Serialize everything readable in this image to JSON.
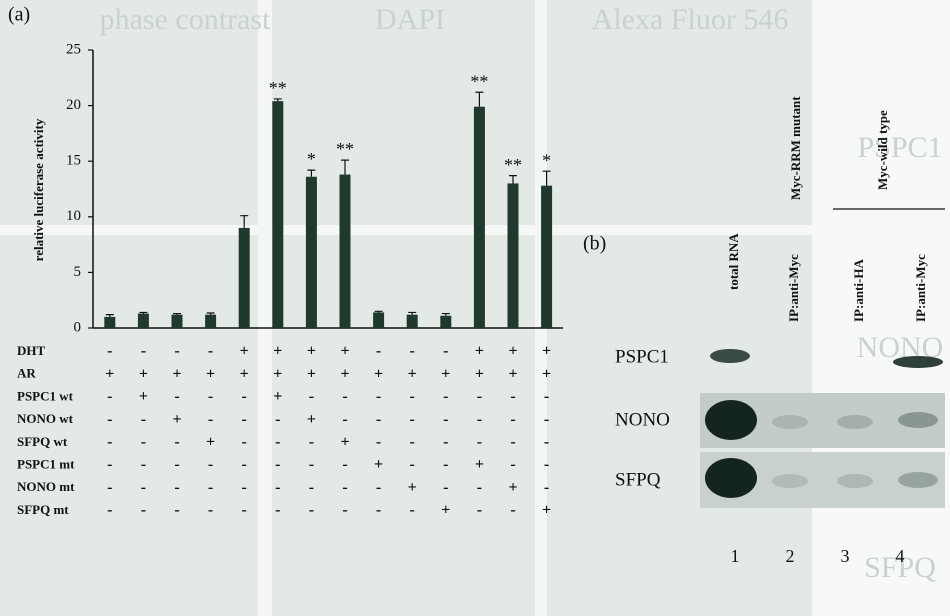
{
  "chart_data": {
    "type": "bar",
    "panel_label": "(a)",
    "ylabel": "relative luciferase activity",
    "categories": [
      null,
      null,
      null,
      null,
      null,
      null,
      null,
      null,
      null,
      null,
      null,
      null,
      null,
      null
    ],
    "values": [
      1.0,
      1.3,
      1.2,
      1.2,
      9.0,
      20.4,
      13.6,
      13.8,
      1.4,
      1.2,
      1.1,
      19.9,
      13.0,
      12.8
    ],
    "errors": [
      0.2,
      0.1,
      0.1,
      0.15,
      1.1,
      0.2,
      0.6,
      1.3,
      0.1,
      0.2,
      0.2,
      1.3,
      0.7,
      1.3
    ],
    "significance": [
      null,
      null,
      null,
      null,
      null,
      "**",
      "*",
      "**",
      null,
      null,
      null,
      "**",
      "**",
      "*"
    ],
    "color": "#1f3a2c",
    "ylim": [
      0,
      25
    ],
    "yticks": [
      0,
      5,
      10,
      15,
      20,
      25
    ]
  },
  "treatment_table": {
    "rows": [
      {
        "label": "DHT",
        "signs": [
          "-",
          "-",
          "-",
          "-",
          "+",
          "+",
          "+",
          "+",
          "-",
          "-",
          "-",
          "+",
          "+",
          "+"
        ]
      },
      {
        "label": "AR",
        "signs": [
          "+",
          "+",
          "+",
          "+",
          "+",
          "+",
          "+",
          "+",
          "+",
          "+",
          "+",
          "+",
          "+",
          "+"
        ]
      },
      {
        "label": "PSPC1 wt",
        "signs": [
          "-",
          "+",
          "-",
          "-",
          "-",
          "+",
          "-",
          "-",
          "-",
          "-",
          "-",
          "-",
          "-",
          "-"
        ]
      },
      {
        "label": "NONO wt",
        "signs": [
          "-",
          "-",
          "+",
          "-",
          "-",
          "-",
          "+",
          "-",
          "-",
          "-",
          "-",
          "-",
          "-",
          "-"
        ]
      },
      {
        "label": "SFPQ wt",
        "signs": [
          "-",
          "-",
          "-",
          "+",
          "-",
          "-",
          "-",
          "+",
          "-",
          "-",
          "-",
          "-",
          "-",
          "-"
        ]
      },
      {
        "label": "PSPC1 mt",
        "signs": [
          "-",
          "-",
          "-",
          "-",
          "-",
          "-",
          "-",
          "-",
          "+",
          "-",
          "-",
          "+",
          "-",
          "-"
        ]
      },
      {
        "label": "NONO mt",
        "signs": [
          "-",
          "-",
          "-",
          "-",
          "-",
          "-",
          "-",
          "-",
          "-",
          "+",
          "-",
          "-",
          "+",
          "-"
        ]
      },
      {
        "label": "SFPQ mt",
        "signs": [
          "-",
          "-",
          "-",
          "-",
          "-",
          "-",
          "-",
          "-",
          "-",
          "-",
          "+",
          "-",
          "-",
          "+"
        ]
      }
    ]
  },
  "gel_panel": {
    "panel_label": "(b)",
    "lane_headers": [
      "total RNA",
      "IP:anti-Myc",
      "IP:anti-HA",
      "IP:anti-Myc"
    ],
    "group_labels": [
      "Myc-RRM mutant",
      "Myc-wild type"
    ],
    "row_labels": [
      "PSPC1",
      "NONO",
      "SFPQ"
    ],
    "lane_numbers": [
      "1",
      "2",
      "3",
      "4"
    ]
  },
  "background_text": [
    "Alexa Fluor 546",
    "DAPI",
    "phase contrast",
    "PSPC1",
    "NONO",
    "SFPQ"
  ]
}
